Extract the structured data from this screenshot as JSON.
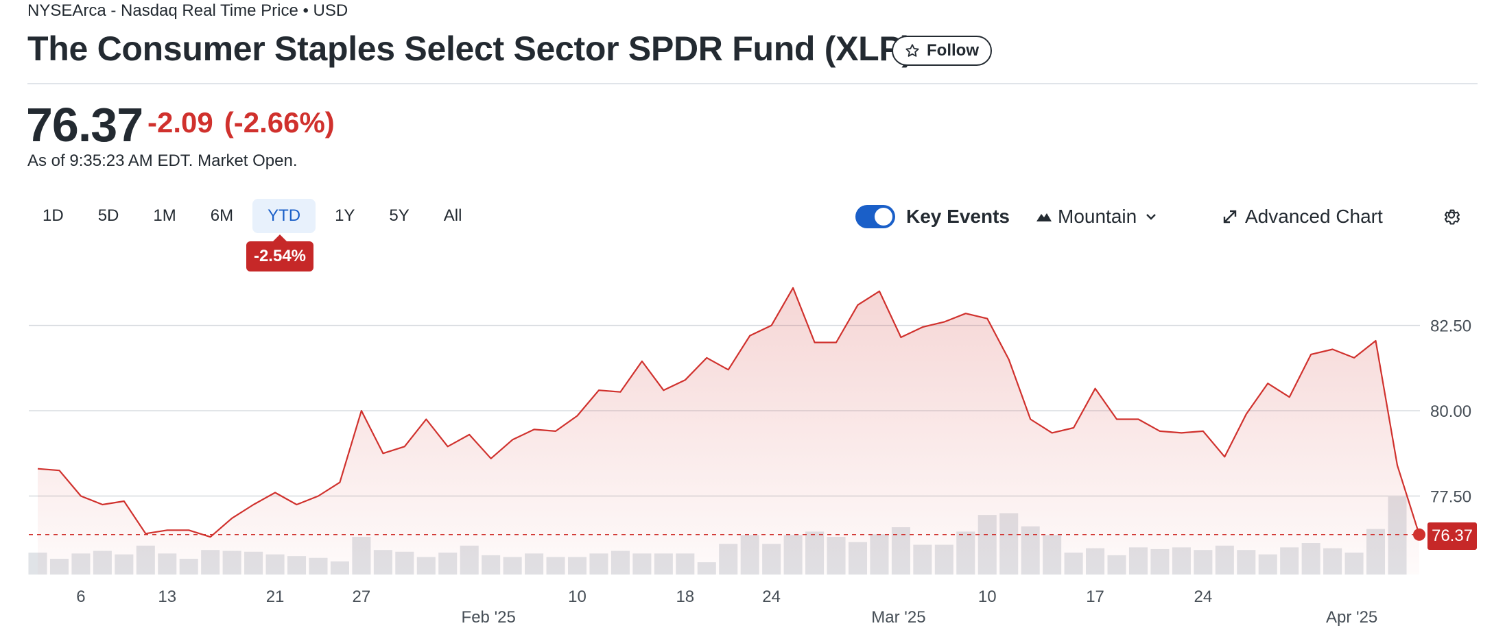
{
  "header": {
    "exchange": "NYSEArca - Nasdaq Real Time Price • USD",
    "title": "The Consumer Staples Select Sector SPDR Fund (XLP)",
    "follow_label": "Follow"
  },
  "quote": {
    "price": "76.37",
    "change": "-2.09",
    "change_pct": "(-2.66%)",
    "as_of": "As of 9:35:23 AM EDT. Market Open."
  },
  "range_tabs": [
    "1D",
    "5D",
    "1M",
    "6M",
    "YTD",
    "1Y",
    "5Y",
    "All"
  ],
  "active_range": "YTD",
  "range_performance": "-2.54%",
  "toolbar": {
    "key_events_label": "Key Events",
    "key_events_enabled": true,
    "chart_type_label": "Mountain",
    "advanced_chart_label": "Advanced Chart",
    "icons": [
      "star-icon",
      "mountain-icon",
      "chevron-down-icon",
      "expand-icon",
      "gear-icon"
    ]
  },
  "colors": {
    "line": "#d0312d",
    "accent": "#1a5fc8",
    "volume": "#e0e3e7",
    "badge": "#c62828"
  },
  "chart_data": {
    "type": "area",
    "title": "",
    "xlabel": "",
    "ylabel": "",
    "dates": [
      "2025-01-02",
      "2025-01-03",
      "2025-01-06",
      "2025-01-07",
      "2025-01-08",
      "2025-01-10",
      "2025-01-13",
      "2025-01-14",
      "2025-01-15",
      "2025-01-16",
      "2025-01-17",
      "2025-01-21",
      "2025-01-22",
      "2025-01-23",
      "2025-01-24",
      "2025-01-27",
      "2025-01-28",
      "2025-01-29",
      "2025-01-30",
      "2025-01-31",
      "2025-02-03",
      "2025-02-04",
      "2025-02-05",
      "2025-02-06",
      "2025-02-07",
      "2025-02-10",
      "2025-02-11",
      "2025-02-12",
      "2025-02-13",
      "2025-02-14",
      "2025-02-18",
      "2025-02-19",
      "2025-02-20",
      "2025-02-21",
      "2025-02-24",
      "2025-02-25",
      "2025-02-26",
      "2025-02-27",
      "2025-02-28",
      "2025-03-03",
      "2025-03-04",
      "2025-03-05",
      "2025-03-06",
      "2025-03-07",
      "2025-03-10",
      "2025-03-11",
      "2025-03-12",
      "2025-03-13",
      "2025-03-14",
      "2025-03-17",
      "2025-03-18",
      "2025-03-19",
      "2025-03-20",
      "2025-03-21",
      "2025-03-24",
      "2025-03-25",
      "2025-03-26",
      "2025-03-27",
      "2025-03-28",
      "2025-03-31",
      "2025-04-01",
      "2025-04-02",
      "2025-04-03",
      "2025-04-04"
    ],
    "price": [
      78.3,
      78.25,
      77.5,
      77.25,
      77.35,
      76.4,
      76.5,
      76.5,
      76.3,
      76.85,
      77.25,
      77.6,
      77.25,
      77.5,
      77.9,
      80.0,
      78.75,
      78.95,
      79.75,
      78.95,
      79.3,
      78.6,
      79.15,
      79.45,
      79.4,
      79.85,
      80.6,
      80.55,
      81.45,
      80.6,
      80.9,
      81.55,
      81.2,
      82.2,
      82.5,
      83.6,
      82.0,
      82.0,
      83.1,
      83.5,
      82.15,
      82.45,
      82.6,
      82.85,
      82.7,
      81.5,
      79.75,
      79.35,
      79.5,
      80.65,
      79.75,
      79.75,
      79.4,
      79.35,
      79.4,
      78.65,
      79.9,
      80.8,
      80.4,
      81.65,
      81.8,
      81.55,
      82.05,
      78.4
    ],
    "last_price": 76.37,
    "volume": [
      25,
      18,
      24,
      27,
      23,
      33,
      24,
      18,
      28,
      27,
      26,
      23,
      21,
      19,
      15,
      43,
      28,
      26,
      20,
      25,
      33,
      22,
      20,
      24,
      20,
      20,
      24,
      27,
      24,
      24,
      24,
      14,
      35,
      45,
      35,
      45,
      49,
      43,
      37,
      46,
      54,
      34,
      34,
      49,
      68,
      70,
      55,
      45,
      25,
      30,
      22,
      31,
      29,
      31,
      28,
      33,
      28,
      23,
      31,
      36,
      30,
      25,
      52,
      90
    ],
    "y_ticks": [
      "77.50",
      "80.00",
      "82.50"
    ],
    "ylim": [
      75.2,
      84.2
    ],
    "x_ticks": [
      {
        "date": "2025-01-06",
        "label": "6"
      },
      {
        "date": "2025-01-13",
        "label": "13"
      },
      {
        "date": "2025-01-21",
        "label": "21"
      },
      {
        "date": "2025-01-27",
        "label": "27"
      },
      {
        "date": "2025-02-10",
        "label": "10"
      },
      {
        "date": "2025-02-18",
        "label": "18"
      },
      {
        "date": "2025-02-24",
        "label": "24"
      },
      {
        "date": "2025-03-10",
        "label": "10"
      },
      {
        "date": "2025-03-17",
        "label": "17"
      },
      {
        "date": "2025-03-24",
        "label": "24"
      }
    ],
    "month_labels": [
      {
        "date": "2025-02-03",
        "label": "Feb '25"
      },
      {
        "date": "2025-03-03",
        "label": "Mar '25"
      },
      {
        "date": "2025-04-01",
        "label": "Apr '25"
      }
    ],
    "grid": true
  }
}
